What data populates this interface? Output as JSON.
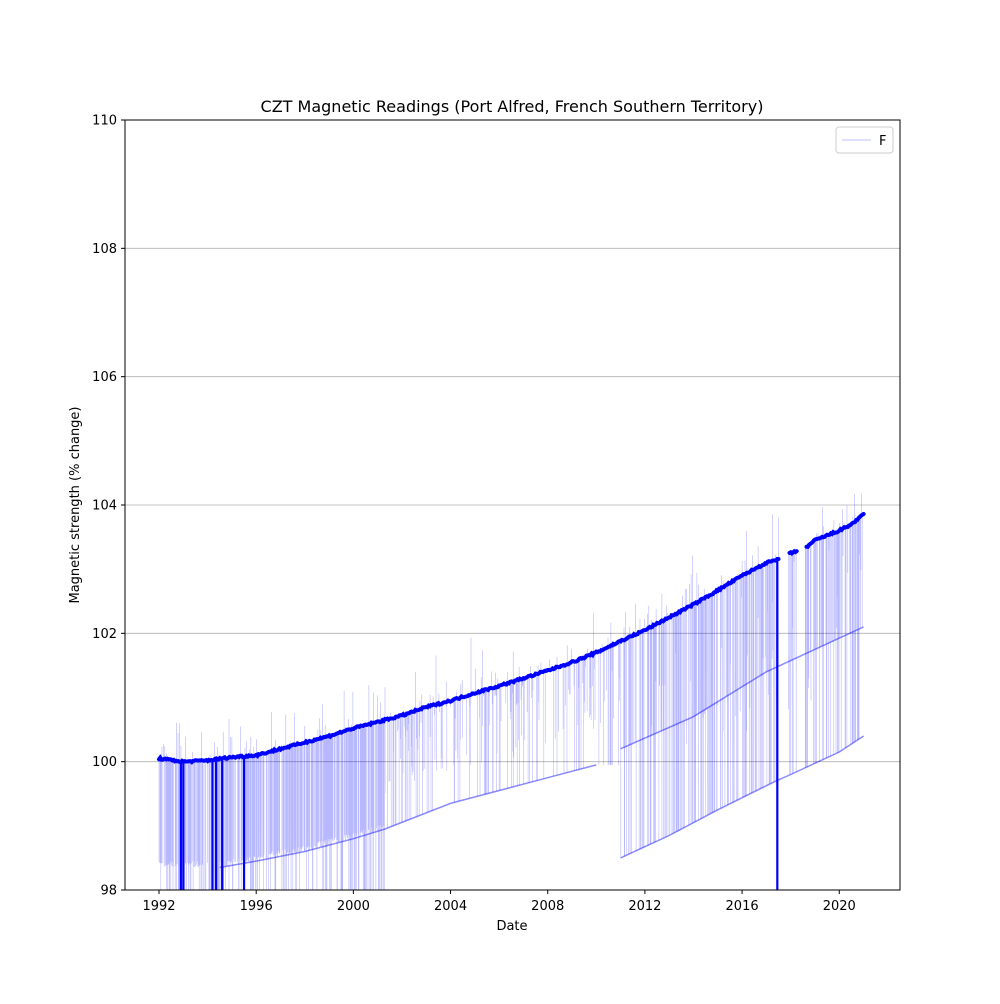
{
  "chart_data": {
    "type": "line",
    "title": "CZT Magnetic Readings (Port Alfred, French Southern Territory)",
    "xlabel": "Date",
    "ylabel": "Magnetic strength (% change)",
    "xlim": [
      1990.6,
      2022.5
    ],
    "ylim": [
      98,
      110
    ],
    "x_ticks": [
      1992,
      1996,
      2000,
      2004,
      2008,
      2012,
      2016,
      2020
    ],
    "y_ticks": [
      98,
      100,
      102,
      104,
      106,
      108,
      110
    ],
    "grid": "y-axis only",
    "legend_position": "upper right",
    "series": [
      {
        "name": "F",
        "color": "#0000ff",
        "trend": [
          [
            1992.0,
            100.05
          ],
          [
            1993.0,
            100.0
          ],
          [
            1994.0,
            100.02
          ],
          [
            1995.0,
            100.07
          ],
          [
            1996.0,
            100.1
          ],
          [
            1997.0,
            100.2
          ],
          [
            1998.0,
            100.3
          ],
          [
            1999.0,
            100.4
          ],
          [
            2000.0,
            100.52
          ],
          [
            2001.0,
            100.62
          ],
          [
            2002.0,
            100.72
          ],
          [
            2003.0,
            100.85
          ],
          [
            2004.0,
            100.95
          ],
          [
            2005.0,
            101.07
          ],
          [
            2006.0,
            101.18
          ],
          [
            2007.0,
            101.3
          ],
          [
            2008.0,
            101.42
          ],
          [
            2009.0,
            101.55
          ],
          [
            2010.0,
            101.7
          ],
          [
            2011.0,
            101.88
          ],
          [
            2012.0,
            102.05
          ],
          [
            2013.0,
            102.25
          ],
          [
            2014.0,
            102.45
          ],
          [
            2015.0,
            102.67
          ],
          [
            2016.0,
            102.9
          ],
          [
            2017.0,
            103.1
          ],
          [
            2017.5,
            103.15
          ],
          [
            2018.0,
            103.25
          ],
          [
            2018.5,
            103.3
          ],
          [
            2019.0,
            103.45
          ],
          [
            2020.0,
            103.6
          ],
          [
            2020.5,
            103.7
          ],
          [
            2021.0,
            103.85
          ]
        ],
        "gaps": [
          [
            2017.5,
            2017.9
          ],
          [
            2018.25,
            2018.6
          ]
        ],
        "low_band": [
          [
            1994.5,
            98.35
          ],
          [
            1996.0,
            98.45
          ],
          [
            1998.0,
            98.6
          ],
          [
            2000.0,
            98.8
          ],
          [
            2001.3,
            98.95
          ],
          [
            2004.0,
            99.35
          ],
          [
            2008.0,
            99.75
          ],
          [
            2010.0,
            99.95
          ]
        ],
        "low_band_2": [
          [
            2011.0,
            98.5
          ],
          [
            2013.0,
            98.85
          ],
          [
            2015.0,
            99.25
          ],
          [
            2017.4,
            99.7
          ],
          [
            2018.0,
            99.8
          ],
          [
            2020.0,
            100.15
          ],
          [
            2021.0,
            100.4
          ]
        ],
        "mid_band": [
          [
            2011.0,
            100.2
          ],
          [
            2014.0,
            100.7
          ],
          [
            2017.0,
            101.4
          ],
          [
            2021.0,
            102.1
          ]
        ]
      }
    ]
  }
}
